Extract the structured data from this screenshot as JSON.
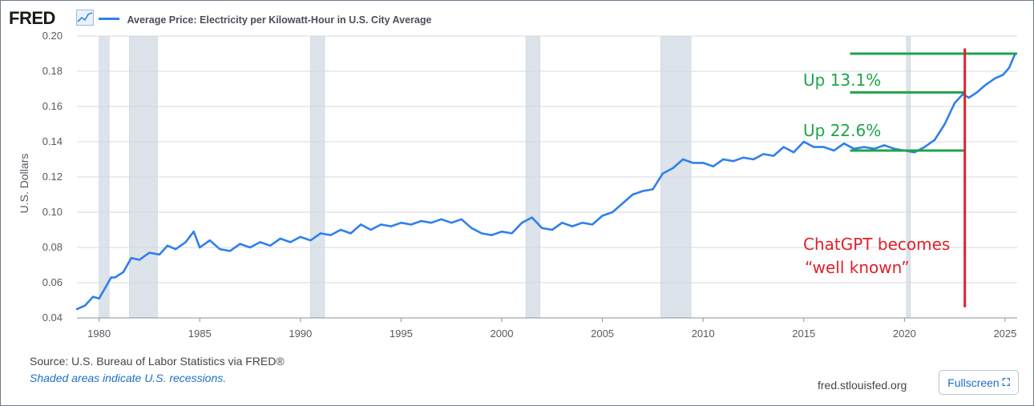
{
  "header": {
    "logo_text": "FRED",
    "logo_icon": "line-chart-icon",
    "series_title": "Average Price: Electricity per Kilowatt-Hour in U.S. City Average"
  },
  "colors": {
    "series": "#2f80ed",
    "recession_shade": "#dde3ea",
    "annotation_green": "#1fa34a",
    "annotation_red": "#e0202a"
  },
  "chart_data": {
    "type": "line",
    "title": "",
    "xlabel": "",
    "ylabel": "U.S. Dollars",
    "xlim": [
      1978.9,
      2025.6
    ],
    "ylim": [
      0.04,
      0.2
    ],
    "y_ticks": [
      "0.04",
      "0.06",
      "0.08",
      "0.10",
      "0.12",
      "0.14",
      "0.16",
      "0.18",
      "0.20"
    ],
    "x_ticks": [
      "1980",
      "1985",
      "1990",
      "1995",
      "2000",
      "2005",
      "2010",
      "2015",
      "2020",
      "2025"
    ],
    "grid": true,
    "recessions": [
      [
        1980.0,
        1980.5
      ],
      [
        1981.5,
        1982.9
      ],
      [
        1990.5,
        1991.2
      ],
      [
        2001.2,
        2001.9
      ],
      [
        2007.9,
        2009.4
      ],
      [
        2020.1,
        2020.3
      ]
    ],
    "series": [
      {
        "values_year": [
          1978.9,
          1979.3,
          1979.7,
          1980.0,
          1980.3,
          1980.6,
          1980.8,
          1981.2,
          1981.6,
          1982.0,
          1982.5,
          1983.0,
          1983.4,
          1983.8,
          1984.3,
          1984.7,
          1985.0,
          1985.5,
          1986.0,
          1986.5,
          1987.0,
          1987.5,
          1988.0,
          1988.5,
          1989.0,
          1989.5,
          1990.0,
          1990.5,
          1991.0,
          1991.5,
          1992.0,
          1992.5,
          1993.0,
          1993.5,
          1994.0,
          1994.5,
          1995.0,
          1995.5,
          1996.0,
          1996.5,
          1997.0,
          1997.5,
          1998.0,
          1998.5,
          1999.0,
          1999.5,
          2000.0,
          2000.5,
          2001.0,
          2001.5,
          2002.0,
          2002.5,
          2003.0,
          2003.5,
          2004.0,
          2004.5,
          2005.0,
          2005.5,
          2006.0,
          2006.5,
          2007.0,
          2007.5,
          2008.0,
          2008.5,
          2009.0,
          2009.5,
          2010.0,
          2010.5,
          2011.0,
          2011.5,
          2012.0,
          2012.5,
          2013.0,
          2013.5,
          2014.0,
          2014.5,
          2015.0,
          2015.5,
          2016.0,
          2016.5,
          2017.0,
          2017.5,
          2018.0,
          2018.5,
          2019.0,
          2019.5,
          2020.0,
          2020.5,
          2021.0,
          2021.5,
          2022.0,
          2022.5,
          2022.9,
          2023.2,
          2023.6,
          2024.0,
          2024.5,
          2024.9,
          2025.2,
          2025.5
        ],
        "values": [
          0.045,
          0.047,
          0.052,
          0.051,
          0.057,
          0.063,
          0.063,
          0.066,
          0.074,
          0.073,
          0.077,
          0.076,
          0.081,
          0.079,
          0.083,
          0.089,
          0.08,
          0.084,
          0.079,
          0.078,
          0.082,
          0.08,
          0.083,
          0.081,
          0.085,
          0.083,
          0.086,
          0.084,
          0.088,
          0.087,
          0.09,
          0.088,
          0.093,
          0.09,
          0.093,
          0.092,
          0.094,
          0.093,
          0.095,
          0.094,
          0.096,
          0.094,
          0.096,
          0.091,
          0.088,
          0.087,
          0.089,
          0.088,
          0.094,
          0.097,
          0.091,
          0.09,
          0.094,
          0.092,
          0.094,
          0.093,
          0.098,
          0.1,
          0.105,
          0.11,
          0.112,
          0.113,
          0.122,
          0.125,
          0.13,
          0.128,
          0.128,
          0.126,
          0.13,
          0.129,
          0.131,
          0.13,
          0.133,
          0.132,
          0.137,
          0.134,
          0.14,
          0.137,
          0.137,
          0.135,
          0.139,
          0.136,
          0.137,
          0.136,
          0.138,
          0.136,
          0.135,
          0.134,
          0.137,
          0.141,
          0.15,
          0.162,
          0.167,
          0.165,
          0.168,
          0.172,
          0.176,
          0.178,
          0.182,
          0.19
        ]
      }
    ]
  },
  "annotations": {
    "up_131": "Up 13.1%",
    "up_226": "Up 22.6%",
    "chatgpt_line1": "ChatGPT becomes",
    "chatgpt_line2": "“well known”",
    "marks": {
      "green_top_value": 0.19,
      "green_mid_value": 0.168,
      "green_low_value": 0.135,
      "green_top_start_year": 2017.3,
      "green_mid_start_year": 2017.3,
      "green_low_start_year": 2017.3,
      "green_end_year": 2025.6,
      "green_low_end_year": 2023.0,
      "red_year": 2023.0,
      "red_top_value": 0.193,
      "red_bottom_value": 0.046
    }
  },
  "footer": {
    "source": "Source: U.S. Bureau of Labor Statistics via FRED®",
    "recession_note": "Shaded areas indicate U.S. recessions.",
    "site": "fred.stlouisfed.org",
    "fullscreen_label": "Fullscreen",
    "fullscreen_icon": "expand-icon"
  }
}
